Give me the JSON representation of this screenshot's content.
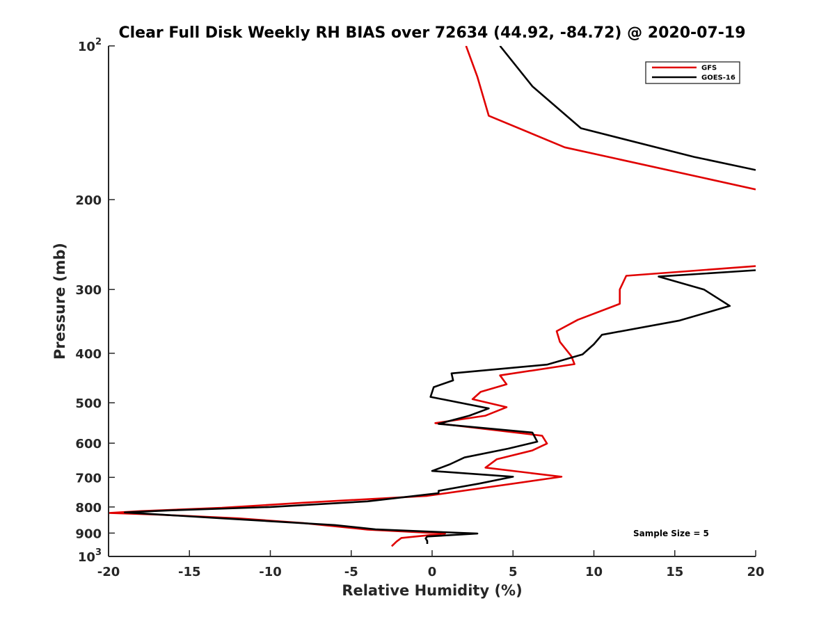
{
  "chart_data": {
    "type": "line",
    "title": "Clear Full Disk Weekly RH BIAS over 72634 (44.92, -84.72) @ 2020-07-19",
    "xlabel": "Relative Humidity (%)",
    "ylabel": "Pressure (mb)",
    "xlim": [
      -20,
      20
    ],
    "ylim": [
      100,
      1000
    ],
    "yscale": "log",
    "y_direction": "reversed",
    "x_ticks": [
      -20,
      -15,
      -10,
      -5,
      0,
      5,
      10,
      15,
      20
    ],
    "x_tick_labels": [
      "-20",
      "-15",
      "-10",
      "-5",
      "0",
      "5",
      "10",
      "15",
      "20"
    ],
    "y_ticks": [
      100,
      200,
      300,
      400,
      500,
      600,
      700,
      800,
      900,
      1000
    ],
    "y_tick_labels": [
      {
        "base": "10",
        "exp": "2"
      },
      {
        "text": "200"
      },
      {
        "text": "300"
      },
      {
        "text": "400"
      },
      {
        "text": "500"
      },
      {
        "text": "600"
      },
      {
        "text": "700"
      },
      {
        "text": "800"
      },
      {
        "text": "900"
      },
      {
        "base": "10",
        "exp": "3"
      }
    ],
    "grid": false,
    "legend_position": "top-right",
    "annotation": "Sample Size = 5",
    "series": [
      {
        "name": "GFS",
        "color": "#e00000",
        "segments": [
          [
            [
              2.1,
              100
            ],
            [
              2.8,
              115
            ],
            [
              3.5,
              137
            ],
            [
              8.2,
              158
            ],
            [
              20,
              191
            ]
          ],
          [
            [
              20,
              270
            ],
            [
              12,
              282
            ],
            [
              11.6,
              300
            ],
            [
              11.6,
              320
            ],
            [
              9,
              344
            ],
            [
              7.7,
              362
            ],
            [
              7.9,
              380
            ],
            [
              8.6,
              405
            ],
            [
              8.8,
              420
            ],
            [
              4.2,
              442
            ],
            [
              4.6,
              460
            ],
            [
              3,
              476
            ],
            [
              2.5,
              492
            ],
            [
              4.6,
              510
            ],
            [
              3.3,
              530
            ],
            [
              0.2,
              548
            ],
            [
              6.8,
              580
            ],
            [
              7.1,
              601
            ],
            [
              6.2,
              620
            ],
            [
              4,
              645
            ],
            [
              3.3,
              670
            ],
            [
              8,
              698
            ],
            [
              -0.3,
              761
            ],
            [
              -8,
              785
            ],
            [
              -13,
              803
            ],
            [
              -18,
              815
            ],
            [
              -20,
              822
            ],
            [
              -17,
              828
            ],
            [
              -12,
              842
            ],
            [
              -8,
              860
            ],
            [
              -4,
              886
            ],
            [
              0.8,
              902
            ],
            [
              -1.9,
              920
            ],
            [
              -2.2,
              935
            ],
            [
              -2.5,
              955
            ]
          ]
        ]
      },
      {
        "name": "GOES-16",
        "color": "#000000",
        "segments": [
          [
            [
              4.2,
              100
            ],
            [
              6.2,
              120
            ],
            [
              9.2,
              145
            ],
            [
              16.2,
              165
            ],
            [
              20,
              175
            ]
          ],
          [
            [
              20,
              275
            ],
            [
              14,
              283
            ],
            [
              16.8,
              300
            ],
            [
              18.4,
              323
            ],
            [
              15.3,
              345
            ],
            [
              10.5,
              368
            ],
            [
              10,
              384
            ],
            [
              9.3,
              402
            ],
            [
              7.1,
              421
            ],
            [
              1.2,
              438
            ],
            [
              1.3,
              452
            ],
            [
              0.1,
              466
            ],
            [
              -0.1,
              487
            ],
            [
              3.5,
              513
            ],
            [
              2.3,
              530
            ],
            [
              0.4,
              550
            ],
            [
              6.2,
              572
            ],
            [
              6.5,
              596
            ],
            [
              4.7,
              615
            ],
            [
              2,
              640
            ],
            [
              1.1,
              660
            ],
            [
              0,
              680
            ],
            [
              5,
              698
            ],
            [
              2.9,
              720
            ],
            [
              0.4,
              744
            ],
            [
              0.4,
              752
            ],
            [
              -4,
              780
            ],
            [
              -10,
              800
            ],
            [
              -16,
              812
            ],
            [
              -19,
              820
            ],
            [
              -13,
              842
            ],
            [
              -6,
              868
            ],
            [
              -3.5,
              885
            ],
            [
              2.8,
              902
            ],
            [
              -0.3,
              914
            ],
            [
              -0.4,
              922
            ],
            [
              -0.3,
              932
            ],
            [
              -0.3,
              945
            ]
          ]
        ]
      }
    ]
  }
}
